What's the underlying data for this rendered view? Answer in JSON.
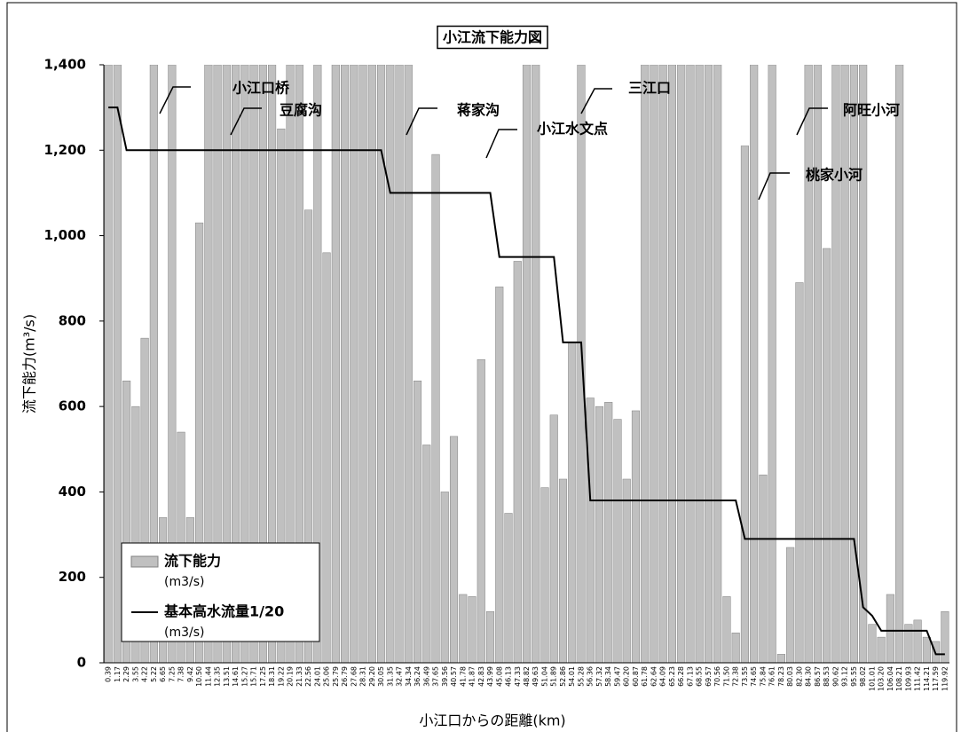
{
  "chart_data": {
    "type": "bar-line",
    "title": "小江流下能力図",
    "x_label": "小江口からの距離(km)",
    "y_label": "流下能力(m³/s)",
    "categories": [
      "0.39",
      "1.17",
      "2.29",
      "3.55",
      "4.22",
      "5.22",
      "6.65",
      "7.25",
      "7.38",
      "9.42",
      "10.50",
      "11.44",
      "12.35",
      "13.51",
      "14.61",
      "15.27",
      "15.71",
      "17.25",
      "18.31",
      "19.22",
      "20.19",
      "21.33",
      "22.56",
      "24.01",
      "25.06",
      "25.79",
      "26.79",
      "27.68",
      "28.31",
      "29.20",
      "30.05",
      "31.35",
      "32.47",
      "34.34",
      "36.24",
      "36.49",
      "37.65",
      "39.56",
      "40.57",
      "41.78",
      "41.87",
      "42.83",
      "43.99",
      "45.08",
      "46.13",
      "47.33",
      "48.82",
      "49.63",
      "51.04",
      "51.89",
      "52.86",
      "54.01",
      "55.28",
      "56.36",
      "57.32",
      "58.34",
      "59.47",
      "60.20",
      "60.87",
      "61.78",
      "62.64",
      "64.09",
      "65.23",
      "66.28",
      "67.13",
      "68.55",
      "69.57",
      "70.56",
      "71.50",
      "72.38",
      "73.55",
      "74.65",
      "75.84",
      "76.61",
      "78.23",
      "80.03",
      "82.30",
      "84.30",
      "86.57",
      "88.53",
      "90.62",
      "93.12",
      "95.55",
      "98.02",
      "101.01",
      "103.20",
      "106.04",
      "108.21",
      "109.93",
      "111.42",
      "114.21",
      "117.59",
      "119.92"
    ],
    "series": [
      {
        "name": "流下能力",
        "unit": "(m3/s)",
        "kind": "bar",
        "color": "#c0c0c0",
        "values": [
          1400,
          1400,
          660,
          600,
          760,
          1400,
          340,
          1400,
          540,
          340,
          1030,
          1400,
          1400,
          1400,
          1400,
          1400,
          1400,
          1400,
          1400,
          1250,
          1400,
          1400,
          1060,
          1400,
          960,
          1400,
          1400,
          1400,
          1400,
          1400,
          1400,
          1400,
          1400,
          1400,
          660,
          510,
          1190,
          400,
          530,
          160,
          155,
          710,
          120,
          880,
          350,
          940,
          1400,
          1400,
          410,
          580,
          430,
          750,
          1400,
          620,
          600,
          610,
          570,
          430,
          590,
          1400,
          1400,
          1400,
          1400,
          1400,
          1400,
          1400,
          1400,
          1400,
          155,
          70,
          1210,
          1400,
          440,
          1400,
          20,
          270,
          890,
          1400,
          1400,
          970,
          1400,
          1400,
          1400,
          1400,
          90,
          60,
          160,
          1400,
          90,
          100,
          60,
          50,
          120
        ]
      },
      {
        "name": "基本高水流量1/20",
        "unit": "(m3/s)",
        "kind": "line",
        "color": "#000000",
        "values": [
          1300,
          1300,
          1200,
          1200,
          1200,
          1200,
          1200,
          1200,
          1200,
          1200,
          1200,
          1200,
          1200,
          1200,
          1200,
          1200,
          1200,
          1200,
          1200,
          1200,
          1200,
          1200,
          1200,
          1200,
          1200,
          1200,
          1200,
          1200,
          1200,
          1200,
          1200,
          1100,
          1100,
          1100,
          1100,
          1100,
          1100,
          1100,
          1100,
          1100,
          1100,
          1100,
          1100,
          950,
          950,
          950,
          950,
          950,
          950,
          950,
          750,
          750,
          750,
          380,
          380,
          380,
          380,
          380,
          380,
          380,
          380,
          380,
          380,
          380,
          380,
          380,
          380,
          380,
          380,
          380,
          290,
          290,
          290,
          290,
          290,
          290,
          290,
          290,
          290,
          290,
          290,
          290,
          290,
          130,
          110,
          75,
          75,
          75,
          75,
          75,
          75,
          20,
          20
        ]
      }
    ],
    "annotations": [
      "小江口桥",
      "豆腐沟",
      "蒋家沟",
      "小江水文点",
      "三江口",
      "桃家小河",
      "阿旺小河"
    ],
    "ylim": [
      0,
      1400
    ],
    "yticks": [
      0,
      200,
      400,
      600,
      800,
      {
        "value": 1000,
        "label": "1,000"
      },
      {
        "value": 1200,
        "label": "1,200"
      },
      {
        "value": 1400,
        "label": "1,400"
      }
    ],
    "grid": false,
    "legend": "lower left"
  }
}
